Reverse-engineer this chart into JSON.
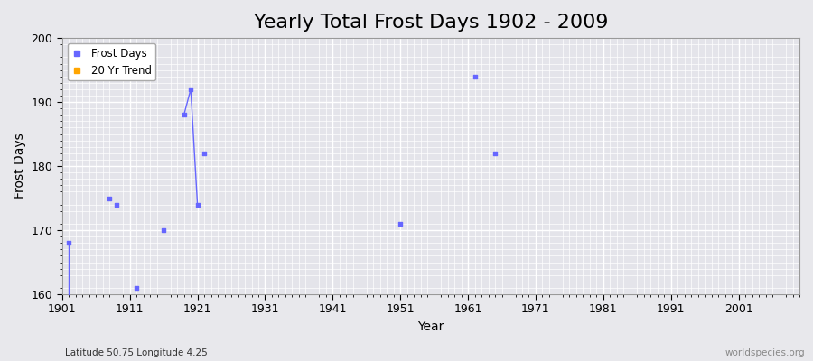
{
  "title": "Yearly Total Frost Days 1902 - 2009",
  "xlabel": "Year",
  "ylabel": "Frost Days",
  "xlim": [
    1901,
    2010
  ],
  "ylim": [
    160,
    200
  ],
  "xticks": [
    1901,
    1911,
    1921,
    1931,
    1941,
    1951,
    1961,
    1971,
    1981,
    1991,
    2001
  ],
  "yticks": [
    160,
    170,
    180,
    190,
    200
  ],
  "background_color": "#e8e8ec",
  "plot_bg_color": "#e4e4ea",
  "grid_color": "#ffffff",
  "frost_days_color": "#6666ff",
  "trend_color": "#ffa500",
  "subtitle_left": "Latitude 50.75 Longitude 4.25",
  "subtitle_right": "worldspecies.org",
  "title_fontsize": 16,
  "label_fontsize": 10,
  "tick_fontsize": 9,
  "data_points": [
    [
      1902,
      168
    ],
    [
      1908,
      175
    ],
    [
      1909,
      174
    ],
    [
      1912,
      161
    ],
    [
      1916,
      170
    ],
    [
      1919,
      188
    ],
    [
      1920,
      192
    ],
    [
      1921,
      174
    ],
    [
      1922,
      182
    ],
    [
      1951,
      171
    ],
    [
      1962,
      194
    ],
    [
      1965,
      182
    ]
  ],
  "connected_segments": [
    [
      [
        1902,
        168
      ],
      [
        1902,
        155
      ]
    ],
    [
      [
        1919,
        188
      ],
      [
        1920,
        192
      ],
      [
        1921,
        174
      ]
    ]
  ]
}
